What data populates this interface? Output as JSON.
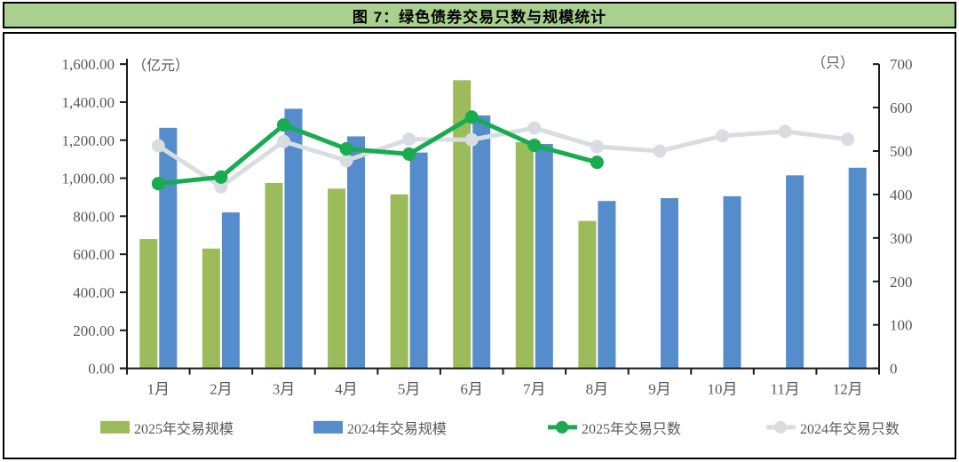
{
  "title": "图 7：绿色债券交易只数与规模统计",
  "colors": {
    "title_background": "#A9D08E",
    "frame_border": "#000000",
    "axis_line": "#1a1a1a",
    "axis_text": "#595959",
    "bar_2025": "#9CBB5B",
    "bar_2024": "#548CCC",
    "line_2025": "#19AB50",
    "line_2024": "#D9DDE2"
  },
  "chart_data": {
    "type": "bar",
    "subtype": "bar-line combo, dual axis",
    "title": "图 7：绿色债券交易只数与规模统计",
    "categories": [
      "1月",
      "2月",
      "3月",
      "4月",
      "5月",
      "6月",
      "7月",
      "8月",
      "9月",
      "10月",
      "11月",
      "12月"
    ],
    "left_axis": {
      "label": "（亿元）",
      "min": 0,
      "max": 1600,
      "step": 200,
      "tick_format": "thousands, 2 decimals"
    },
    "right_axis": {
      "label": "（只）",
      "min": 0,
      "max": 700,
      "step": 100
    },
    "grid": "off",
    "legend_position": "bottom",
    "series": [
      {
        "name": "2025年交易规模",
        "type": "bar",
        "axis": "left",
        "color": "#9CBB5B",
        "values": [
          680,
          630,
          975,
          945,
          915,
          1515,
          1190,
          775,
          null,
          null,
          null,
          null
        ]
      },
      {
        "name": "2024年交易规模",
        "type": "bar",
        "axis": "left",
        "color": "#548CCC",
        "values": [
          1265,
          820,
          1365,
          1220,
          1135,
          1330,
          1180,
          880,
          895,
          905,
          1015,
          1055
        ]
      },
      {
        "name": "2025年交易只数",
        "type": "line",
        "axis": "right",
        "color": "#19AB50",
        "values": [
          425,
          440,
          560,
          505,
          493,
          578,
          513,
          474,
          null,
          null,
          null,
          null
        ]
      },
      {
        "name": "2024年交易只数",
        "type": "line",
        "axis": "right",
        "color": "#D9DDE2",
        "values": [
          512,
          418,
          522,
          478,
          527,
          526,
          553,
          510,
          500,
          535,
          545,
          527
        ]
      }
    ]
  }
}
